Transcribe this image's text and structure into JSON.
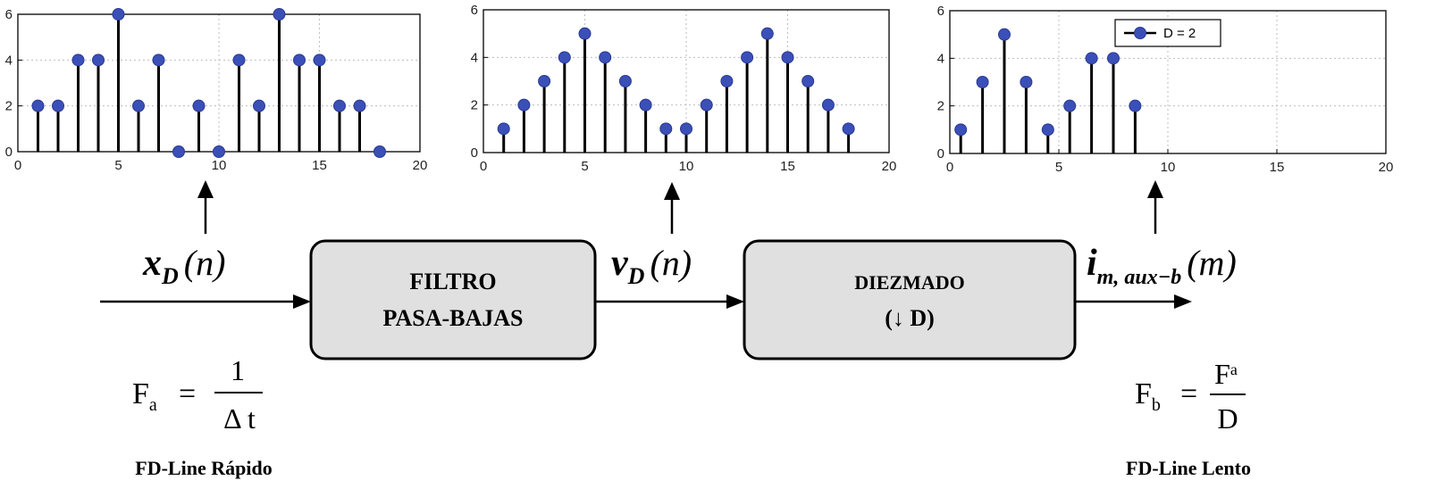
{
  "chart_data": [
    {
      "type": "stem",
      "x": [
        1,
        2,
        3,
        4,
        5,
        6,
        7,
        8,
        9,
        10,
        11,
        12,
        13,
        14,
        15,
        16,
        17,
        18
      ],
      "values": [
        2,
        2,
        4,
        4,
        6,
        2,
        4,
        0,
        2,
        0,
        4,
        2,
        6,
        4,
        4,
        2,
        2,
        0
      ],
      "xlim": [
        0,
        20
      ],
      "ylim": [
        0,
        6
      ],
      "xticks": [
        "0",
        "5",
        "10",
        "15",
        "20"
      ],
      "yticks": [
        "0",
        "2",
        "4",
        "6"
      ],
      "grid": true,
      "marker_color": "#3b4fb8"
    },
    {
      "type": "stem",
      "x": [
        1,
        2,
        3,
        4,
        5,
        6,
        7,
        8,
        9,
        10,
        11,
        12,
        13,
        14,
        15,
        16,
        17,
        18
      ],
      "values": [
        1,
        2,
        3,
        4,
        5,
        4,
        3,
        2,
        1,
        1,
        2,
        3,
        4,
        5,
        4,
        3,
        2,
        1
      ],
      "xlim": [
        0,
        20
      ],
      "ylim": [
        0,
        6
      ],
      "xticks": [
        "0",
        "5",
        "10",
        "15",
        "20"
      ],
      "yticks": [
        "0",
        "2",
        "4",
        "6"
      ],
      "grid": true,
      "marker_color": "#3b4fb8"
    },
    {
      "type": "stem",
      "x": [
        0.5,
        1.5,
        2.5,
        3.5,
        4.5,
        5.5,
        6.5,
        7.5,
        8.5
      ],
      "values": [
        1,
        3,
        5,
        3,
        1,
        2,
        4,
        4,
        2
      ],
      "xlim": [
        0,
        20
      ],
      "ylim": [
        0,
        6
      ],
      "xticks": [
        "0",
        "5",
        "10",
        "15",
        "20"
      ],
      "yticks": [
        "0",
        "2",
        "4",
        "6"
      ],
      "grid": true,
      "legend": {
        "label": "D = 2",
        "placement": "top-left"
      },
      "marker_color": "#3b4fb8"
    }
  ],
  "diagram": {
    "signal_in": {
      "sym": "x",
      "sub": "D",
      "arg": "(n)"
    },
    "signal_mid": {
      "sym": "v",
      "sub": "D",
      "arg": "(n)"
    },
    "signal_out": {
      "sym": "i",
      "sub": "m, aux−b",
      "arg": "(m)"
    },
    "block1": {
      "line1": "FILTRO",
      "line2": "PASA-BAJAS"
    },
    "block2": {
      "line1": "DIEZMADO",
      "line2": "(↓ D)"
    },
    "fa_formula": {
      "lhs": "F",
      "lhs_sub": "a",
      "eq": "=",
      "num": "1",
      "den": "Δ t"
    },
    "fb_formula": {
      "lhs": "F",
      "lhs_sub": "b",
      "eq": "=",
      "num": "F",
      "num_sub": "a",
      "den": "D"
    },
    "caption_left": "FD-Line Rápido",
    "caption_right": "FD-Line Lento"
  },
  "colors": {
    "block_fill": "#e0e0e0",
    "marker": "#3b4fb8",
    "grid": "#bdbdbd"
  }
}
